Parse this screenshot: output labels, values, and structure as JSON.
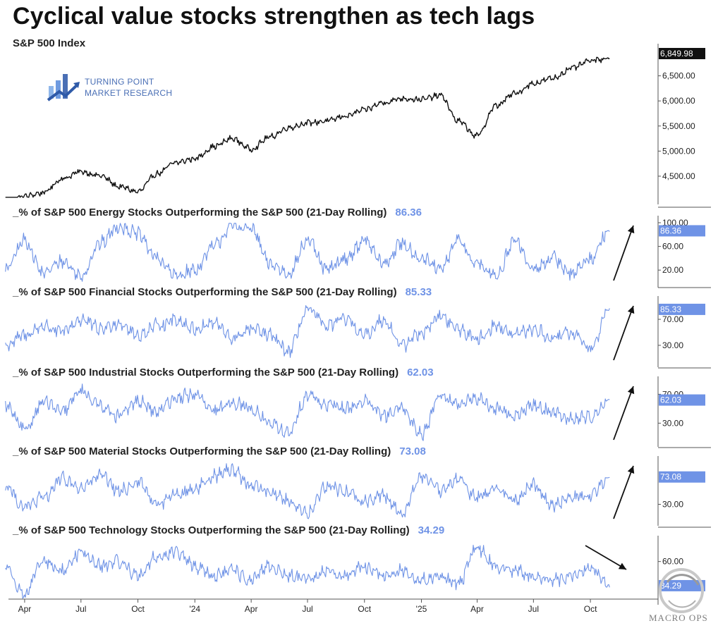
{
  "header": {
    "title": "Cyclical value stocks strengthen as tech lags",
    "brand_line1": "TURNING POINT",
    "brand_line2": "MARKET RESEARCH",
    "watermark": "MACRO OPS"
  },
  "colors": {
    "index_line": "#111111",
    "breadth_line": "#6f93e6",
    "value_tag": "#6f93e6",
    "index_tag": "#111111",
    "arrow": "#111111",
    "logo_blue": "#4a6fb5",
    "logo_light": "#8fb6ea"
  },
  "icons": {
    "logo": "bar-chart-arrow-icon",
    "watermark": "circle-swirl-icon",
    "trend_arrow": "trend-arrow-icon"
  },
  "chart_data": [
    {
      "type": "line",
      "title": "S&P 500 Index",
      "last_value_label": "6,849.98",
      "y_tick_labels": [
        "6,500.00",
        "6,000.00",
        "5,500.00",
        "5,000.00",
        "4,500.00"
      ],
      "ylim": [
        4050,
        7000
      ],
      "y_ticks": [
        6500,
        6000,
        5500,
        5000,
        4500
      ],
      "x": [
        "2023-03",
        "2023-04",
        "2023-05",
        "2023-06",
        "2023-07",
        "2023-08",
        "2023-09",
        "2023-10",
        "2023-11",
        "2023-12",
        "2024-01",
        "2024-02",
        "2024-03",
        "2024-04",
        "2024-05",
        "2024-06",
        "2024-07",
        "2024-08",
        "2024-09",
        "2024-10",
        "2024-11",
        "2024-12",
        "2025-01",
        "2025-02",
        "2025-03",
        "2025-04",
        "2025-05",
        "2025-06",
        "2025-07",
        "2025-08",
        "2025-09",
        "2025-10",
        "2025-11"
      ],
      "series": [
        {
          "values": [
            3950,
            4100,
            4170,
            4450,
            4590,
            4510,
            4290,
            4190,
            4550,
            4770,
            4850,
            5090,
            5250,
            5040,
            5280,
            5470,
            5560,
            5600,
            5700,
            5820,
            5970,
            6050,
            6030,
            6110,
            5600,
            5300,
            5900,
            6150,
            6350,
            6450,
            6650,
            6800,
            6850
          ]
        }
      ],
      "grid": false,
      "legend": "none"
    },
    {
      "type": "line",
      "title": "_% of S&P 500 Energy Stocks Outperforming the S&P 500 (21-Day Rolling)",
      "last_value": 86.36,
      "last_value_label": "86.36",
      "ylim": [
        0,
        100
      ],
      "y_ticks": [
        100,
        60,
        20
      ],
      "y_tick_labels": [
        "100.00",
        "60.00",
        "20.00"
      ],
      "trend_arrow": "up",
      "x": [
        "2023-03",
        "2023-04",
        "2023-05",
        "2023-06",
        "2023-07",
        "2023-08",
        "2023-09",
        "2023-10",
        "2023-11",
        "2023-12",
        "2024-01",
        "2024-02",
        "2024-03",
        "2024-04",
        "2024-05",
        "2024-06",
        "2024-07",
        "2024-08",
        "2024-09",
        "2024-10",
        "2024-11",
        "2024-12",
        "2025-01",
        "2025-02",
        "2025-03",
        "2025-04",
        "2025-05",
        "2025-06",
        "2025-07",
        "2025-08",
        "2025-09",
        "2025-10",
        "2025-11"
      ],
      "series": [
        {
          "values": [
            20,
            70,
            15,
            35,
            10,
            65,
            95,
            80,
            40,
            10,
            20,
            60,
            95,
            90,
            30,
            15,
            70,
            20,
            40,
            70,
            30,
            65,
            40,
            20,
            70,
            30,
            10,
            70,
            20,
            40,
            15,
            40,
            86.36
          ]
        }
      ],
      "grid": false,
      "legend": "none"
    },
    {
      "type": "line",
      "title": "_% of S&P 500 Financial Stocks Outperforming the S&P 500 (21-Day Rolling)",
      "last_value": 85.33,
      "last_value_label": "85.33",
      "ylim": [
        5,
        95
      ],
      "y_ticks": [
        70,
        30
      ],
      "y_tick_labels": [
        "70.00",
        "30.00"
      ],
      "trend_arrow": "up",
      "x": [
        "2023-03",
        "2023-04",
        "2023-05",
        "2023-06",
        "2023-07",
        "2023-08",
        "2023-09",
        "2023-10",
        "2023-11",
        "2023-12",
        "2024-01",
        "2024-02",
        "2024-03",
        "2024-04",
        "2024-05",
        "2024-06",
        "2024-07",
        "2024-08",
        "2024-09",
        "2024-10",
        "2024-11",
        "2024-12",
        "2025-01",
        "2025-02",
        "2025-03",
        "2025-04",
        "2025-05",
        "2025-06",
        "2025-07",
        "2025-08",
        "2025-09",
        "2025-10",
        "2025-11"
      ],
      "series": [
        {
          "values": [
            30,
            45,
            60,
            50,
            70,
            55,
            65,
            45,
            60,
            70,
            55,
            65,
            40,
            55,
            45,
            20,
            85,
            60,
            70,
            45,
            70,
            30,
            50,
            75,
            55,
            40,
            60,
            45,
            55,
            40,
            50,
            25,
            85.33
          ]
        }
      ],
      "grid": false,
      "legend": "none"
    },
    {
      "type": "line",
      "title": "_% of S&P 500 Industrial Stocks Outperforming the S&P 500 (21-Day Rolling)",
      "last_value": 62.03,
      "last_value_label": "62.03",
      "ylim": [
        5,
        85
      ],
      "y_ticks": [
        70,
        30
      ],
      "y_tick_labels": [
        "70.00",
        "30.00"
      ],
      "trend_arrow": "up",
      "x": [
        "2023-03",
        "2023-04",
        "2023-05",
        "2023-06",
        "2023-07",
        "2023-08",
        "2023-09",
        "2023-10",
        "2023-11",
        "2023-12",
        "2024-01",
        "2024-02",
        "2024-03",
        "2024-04",
        "2024-05",
        "2024-06",
        "2024-07",
        "2024-08",
        "2024-09",
        "2024-10",
        "2024-11",
        "2024-12",
        "2025-01",
        "2025-02",
        "2025-03",
        "2025-04",
        "2025-05",
        "2025-06",
        "2025-07",
        "2025-08",
        "2025-09",
        "2025-10",
        "2025-11"
      ],
      "series": [
        {
          "values": [
            55,
            20,
            60,
            45,
            75,
            55,
            40,
            60,
            45,
            65,
            70,
            45,
            60,
            50,
            30,
            15,
            70,
            55,
            50,
            60,
            40,
            50,
            15,
            70,
            55,
            65,
            50,
            40,
            55,
            45,
            35,
            40,
            62.03
          ]
        }
      ],
      "grid": false,
      "legend": "none"
    },
    {
      "type": "line",
      "title": "_% of S&P 500 Material Stocks Outperforming the S&P 500 (21-Day Rolling)",
      "last_value": 73.08,
      "last_value_label": "73.08",
      "ylim": [
        5,
        95
      ],
      "y_ticks": [
        30
      ],
      "y_tick_labels": [
        "30.00"
      ],
      "trend_arrow": "up",
      "x": [
        "2023-03",
        "2023-04",
        "2023-05",
        "2023-06",
        "2023-07",
        "2023-08",
        "2023-09",
        "2023-10",
        "2023-11",
        "2023-12",
        "2024-01",
        "2024-02",
        "2024-03",
        "2024-04",
        "2024-05",
        "2024-06",
        "2024-07",
        "2024-08",
        "2024-09",
        "2024-10",
        "2024-11",
        "2024-12",
        "2025-01",
        "2025-02",
        "2025-03",
        "2025-04",
        "2025-05",
        "2025-06",
        "2025-07",
        "2025-08",
        "2025-09",
        "2025-10",
        "2025-11"
      ],
      "series": [
        {
          "values": [
            60,
            25,
            40,
            70,
            55,
            75,
            50,
            65,
            30,
            45,
            55,
            75,
            85,
            60,
            50,
            35,
            15,
            60,
            50,
            35,
            45,
            15,
            75,
            50,
            70,
            40,
            55,
            35,
            60,
            30,
            40,
            45,
            73.08
          ]
        }
      ],
      "grid": false,
      "legend": "none"
    },
    {
      "type": "line",
      "title": "_% of S&P 500 Technology Stocks Outperforming the S&P 500 (21-Day Rolling)",
      "last_value": 34.29,
      "last_value_label": "34.29",
      "ylim": [
        20,
        80
      ],
      "y_ticks": [
        60
      ],
      "y_tick_labels": [
        "60.00"
      ],
      "trend_arrow": "down",
      "x": [
        "2023-03",
        "2023-04",
        "2023-05",
        "2023-06",
        "2023-07",
        "2023-08",
        "2023-09",
        "2023-10",
        "2023-11",
        "2023-12",
        "2024-01",
        "2024-02",
        "2024-03",
        "2024-04",
        "2024-05",
        "2024-06",
        "2024-07",
        "2024-08",
        "2024-09",
        "2024-10",
        "2024-11",
        "2024-12",
        "2025-01",
        "2025-02",
        "2025-03",
        "2025-04",
        "2025-05",
        "2025-06",
        "2025-07",
        "2025-08",
        "2025-09",
        "2025-10",
        "2025-11"
      ],
      "series": [
        {
          "values": [
            55,
            25,
            60,
            50,
            70,
            55,
            60,
            45,
            65,
            70,
            55,
            45,
            50,
            40,
            55,
            45,
            40,
            50,
            45,
            55,
            45,
            50,
            40,
            45,
            35,
            75,
            55,
            50,
            45,
            40,
            45,
            55,
            34.29
          ]
        }
      ],
      "grid": false,
      "legend": "none"
    }
  ],
  "x_axis": {
    "tick_labels": [
      "Apr",
      "Jul",
      "Oct",
      "'24",
      "Apr",
      "Jul",
      "Oct",
      "'25",
      "Apr",
      "Jul",
      "Oct"
    ],
    "tick_dates": [
      "2023-04",
      "2023-07",
      "2023-10",
      "2024-01",
      "2024-04",
      "2024-07",
      "2024-10",
      "2025-01",
      "2025-04",
      "2025-07",
      "2025-10"
    ]
  }
}
